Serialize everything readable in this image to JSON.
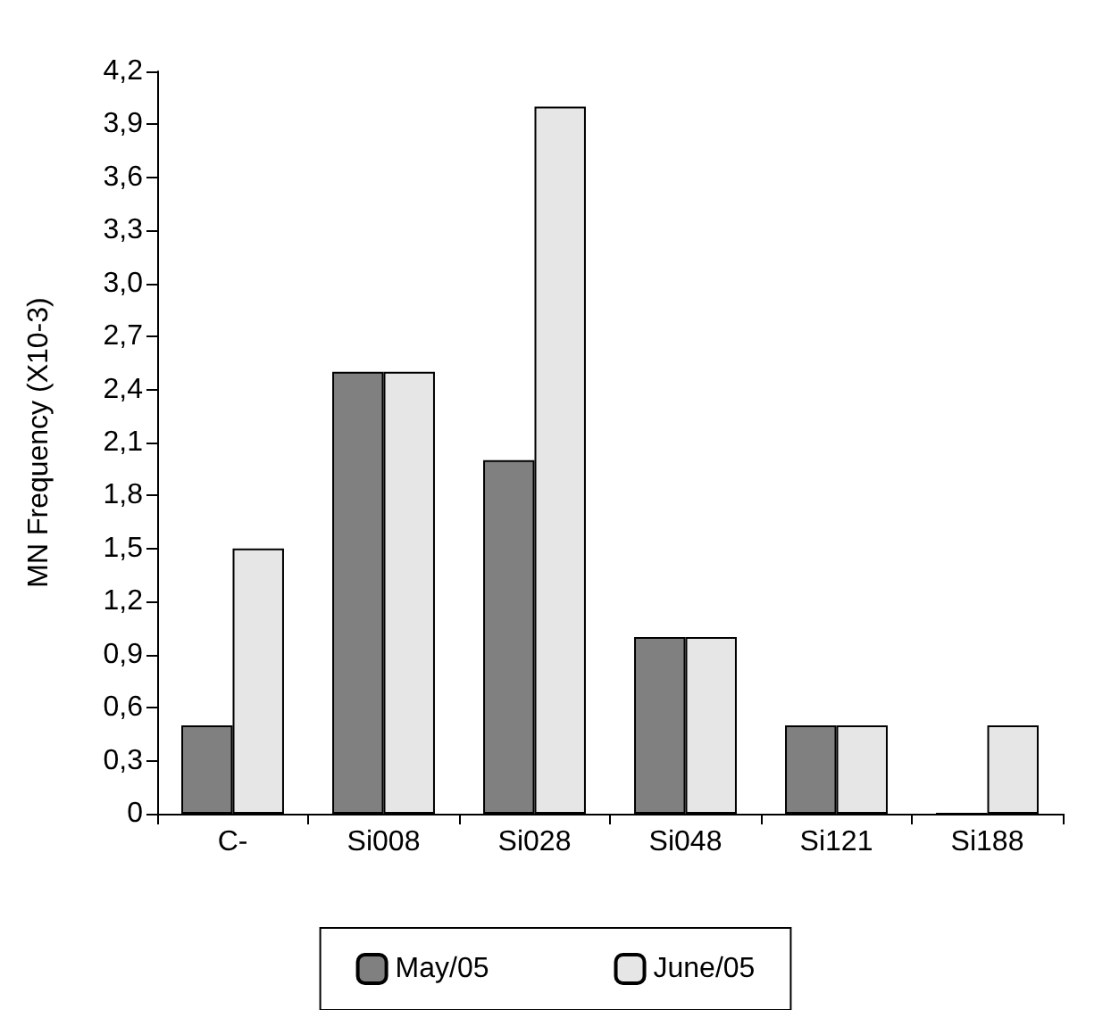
{
  "chart_data": {
    "type": "bar",
    "ylabel": "MN Frequency (X10-3)",
    "categories": [
      "C-",
      "Si008",
      "Si028",
      "Si048",
      "Si121",
      "Si188"
    ],
    "series": [
      {
        "name": "May/05",
        "color": "#808080",
        "values": [
          0.5,
          2.5,
          2.0,
          1.0,
          0.5,
          0
        ]
      },
      {
        "name": "June/05",
        "color": "#e6e6e6",
        "values": [
          1.5,
          2.5,
          4.0,
          1.0,
          0.5,
          0.5
        ]
      }
    ],
    "ylim": [
      0,
      4.2
    ],
    "yticks": [
      {
        "value": 0,
        "label": "0"
      },
      {
        "value": 0.3,
        "label": "0,3"
      },
      {
        "value": 0.6,
        "label": "0,6"
      },
      {
        "value": 0.9,
        "label": "0,9"
      },
      {
        "value": 1.2,
        "label": "1,2"
      },
      {
        "value": 1.5,
        "label": "1,5"
      },
      {
        "value": 1.8,
        "label": "1,8"
      },
      {
        "value": 2.1,
        "label": "2,1"
      },
      {
        "value": 2.4,
        "label": "2,4"
      },
      {
        "value": 2.7,
        "label": "2,7"
      },
      {
        "value": 3.0,
        "label": "3,0"
      },
      {
        "value": 3.3,
        "label": "3,3"
      },
      {
        "value": 3.6,
        "label": "3,6"
      },
      {
        "value": 3.9,
        "label": "3,9"
      },
      {
        "value": 4.2,
        "label": "4,2"
      }
    ],
    "grid": false,
    "legend": "bottom"
  }
}
